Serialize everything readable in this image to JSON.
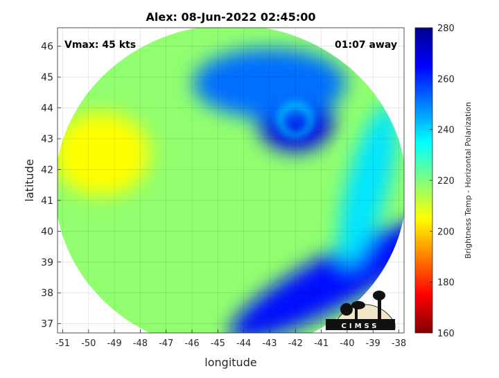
{
  "chart_data": {
    "type": "heatmap",
    "title": "Alex: 08-Jun-2022 02:45:00",
    "xlabel": "longitude",
    "ylabel": "latitude",
    "xlim": [
      -51.2,
      -37.8
    ],
    "ylim": [
      36.7,
      46.6
    ],
    "xticks": [
      -51,
      -50,
      -49,
      -48,
      -47,
      -46,
      -45,
      -44,
      -43,
      -42,
      -41,
      -40,
      -39,
      -38
    ],
    "yticks": [
      37,
      38,
      39,
      40,
      41,
      42,
      43,
      44,
      45,
      46
    ],
    "grid": true,
    "annotations": {
      "vmax": "Vmax: 45 kts",
      "time_away": "01:07 away"
    },
    "colorbar": {
      "label": "Brightness Temp - Horizontal Polarization",
      "min": 160,
      "max": 280,
      "ticks": [
        160,
        180,
        200,
        220,
        240,
        260,
        280
      ],
      "colormap": "jet"
    },
    "swath": {
      "center": [
        -44.5,
        41.4
      ],
      "radius_lon": 6.8,
      "radius_lat": 5.3,
      "background_temp": 218
    },
    "features": [
      {
        "name": "storm-core",
        "lon": -42.0,
        "lat": 43.6,
        "temp": 268
      },
      {
        "name": "north-cloud-band",
        "lon": -43.0,
        "lat": 44.8,
        "temp": 252
      },
      {
        "name": "southeast-band",
        "lon": -40.5,
        "lat": 38.4,
        "temp": 264
      },
      {
        "name": "eastern-band",
        "lon": -39.2,
        "lat": 41.5,
        "temp": 238
      },
      {
        "name": "western-warm-area",
        "lon": -49.5,
        "lat": 42.5,
        "temp": 205
      }
    ],
    "logo": "CIMSS"
  }
}
